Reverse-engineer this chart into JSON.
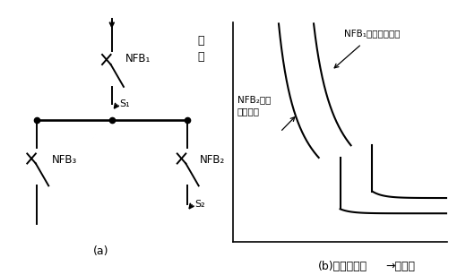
{
  "bg_color": "#ffffff",
  "label_a": "(a)",
  "label_b": "(b)　動作協調",
  "ylabel_b": "時\n間",
  "xlabel_b": "→電　流",
  "nfb1_label": "NFB₁動作特性曲線",
  "nfb2_label": "NFB₂動作\n特性曲線",
  "nfb1_sub": "NFB₁",
  "nfb2_sub": "NFB₂",
  "nfb3_sub": "NFB₃",
  "s1_label": "S₁",
  "s2_label": "S₂"
}
